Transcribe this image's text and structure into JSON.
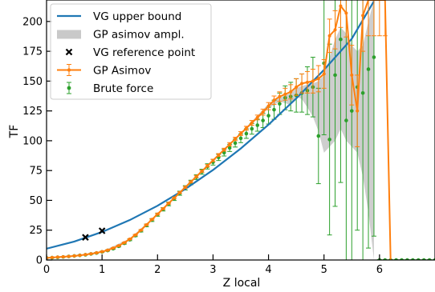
{
  "chart_data": {
    "type": "line",
    "xlabel": "Z local",
    "ylabel": "TF",
    "xlim": [
      0,
      7
    ],
    "ylim": [
      0,
      218
    ],
    "x_ticks": [
      0,
      1,
      2,
      3,
      4,
      5,
      6
    ],
    "y_ticks": [
      0,
      25,
      50,
      75,
      100,
      125,
      150,
      175,
      200
    ],
    "grid": false,
    "legend_position": "top-left",
    "colors": {
      "vg": "#1f77b4",
      "gp": "#ff7f0e",
      "bf": "#2ca02c",
      "band": "#c9c9c9",
      "ref": "#000000"
    },
    "legend": [
      {
        "key": "vg",
        "label": "VG upper bound"
      },
      {
        "key": "band",
        "label": "GP asimov ampl."
      },
      {
        "key": "ref",
        "label": "VG reference point"
      },
      {
        "key": "gp",
        "label": "GP Asimov"
      },
      {
        "key": "bf",
        "label": "Brute force"
      }
    ],
    "series": [
      {
        "name": "VG upper bound",
        "key": "vg",
        "style": "line",
        "x": [
          0,
          0.5,
          1,
          1.5,
          2,
          2.5,
          3,
          3.5,
          4,
          4.5,
          5,
          5.5,
          5.9
        ],
        "y": [
          9.5,
          15.5,
          23.5,
          33.5,
          45.5,
          59.5,
          75.5,
          93.5,
          113.5,
          135.5,
          159.5,
          185.5,
          217
        ]
      },
      {
        "name": "VG reference point",
        "key": "ref",
        "style": "marker-x",
        "x": [
          0.7,
          1.0
        ],
        "y": [
          19,
          24.5
        ]
      },
      {
        "name": "GP Asimov",
        "key": "gp",
        "style": "line-errorbar",
        "x": [
          0,
          0.1,
          0.2,
          0.3,
          0.4,
          0.5,
          0.6,
          0.7,
          0.8,
          0.9,
          1.0,
          1.1,
          1.2,
          1.3,
          1.4,
          1.5,
          1.6,
          1.7,
          1.8,
          1.9,
          2.0,
          2.1,
          2.2,
          2.3,
          2.4,
          2.5,
          2.6,
          2.7,
          2.8,
          2.9,
          3.0,
          3.1,
          3.2,
          3.3,
          3.4,
          3.5,
          3.6,
          3.7,
          3.8,
          3.9,
          4.0,
          4.1,
          4.2,
          4.3,
          4.4,
          4.5,
          4.6,
          4.7,
          4.8,
          4.9,
          5.0,
          5.1,
          5.2,
          5.3,
          5.4,
          5.5,
          5.6,
          5.7,
          5.8,
          5.9,
          6.0,
          6.1,
          6.2
        ],
        "y": [
          1.8,
          2.1,
          2.4,
          2.7,
          3.0,
          3.4,
          3.9,
          4.5,
          5.2,
          6.0,
          7.0,
          8.2,
          10,
          12,
          14.5,
          17.5,
          21,
          25,
          29.5,
          34,
          38.5,
          43,
          47.5,
          52,
          56.5,
          61,
          65.5,
          70,
          74.5,
          79,
          83.5,
          88,
          92.5,
          97,
          101.5,
          106,
          110.5,
          115,
          119.5,
          124,
          129,
          134,
          137,
          139,
          141,
          145,
          148,
          149,
          150,
          152,
          156,
          188,
          193,
          213,
          207,
          155,
          125,
          205,
          218,
          218,
          218,
          218,
          0
        ],
        "err": [
          0.2,
          0.2,
          0.2,
          0.2,
          0.2,
          0.2,
          0.2,
          0.2,
          0.2,
          0.2,
          0.3,
          0.3,
          0.3,
          0.3,
          0.4,
          0.4,
          0.4,
          0.5,
          0.5,
          0.5,
          0.6,
          0.6,
          0.6,
          0.7,
          0.7,
          0.8,
          0.8,
          0.9,
          0.9,
          1.0,
          1.0,
          1.2,
          1.2,
          1.4,
          1.4,
          1.6,
          1.6,
          2.0,
          2.0,
          2.5,
          3.0,
          3.5,
          4.0,
          5,
          6,
          7,
          8,
          9,
          10,
          11,
          12,
          14,
          16,
          18,
          20,
          25,
          30,
          30,
          30,
          30,
          30,
          30,
          0
        ]
      },
      {
        "name": "Brute force",
        "key": "bf",
        "style": "points-errorbar",
        "x": [
          0,
          0.1,
          0.2,
          0.3,
          0.4,
          0.5,
          0.6,
          0.7,
          0.8,
          0.9,
          1.0,
          1.1,
          1.2,
          1.3,
          1.4,
          1.5,
          1.6,
          1.7,
          1.8,
          1.9,
          2.0,
          2.1,
          2.2,
          2.3,
          2.4,
          2.5,
          2.6,
          2.7,
          2.8,
          2.9,
          3.0,
          3.1,
          3.2,
          3.3,
          3.4,
          3.5,
          3.6,
          3.7,
          3.8,
          3.9,
          4.0,
          4.1,
          4.2,
          4.3,
          4.4,
          4.5,
          4.6,
          4.7,
          4.8,
          4.9,
          5.0,
          5.1,
          5.2,
          5.3,
          5.4,
          5.5,
          5.6,
          5.7,
          5.8,
          5.9,
          6.0,
          6.1,
          6.2,
          6.3,
          6.4,
          6.5,
          6.6,
          6.7,
          6.8,
          6.9,
          7.0
        ],
        "y": [
          1.8,
          2.0,
          2.3,
          2.6,
          3.0,
          3.4,
          3.9,
          4.4,
          5.1,
          5.9,
          6.8,
          8,
          9.5,
          11.5,
          14,
          17,
          20.5,
          24.5,
          29,
          33.5,
          38,
          42.5,
          47,
          51.5,
          56,
          60.5,
          65,
          69.5,
          74,
          78.5,
          82,
          86,
          90,
          94,
          98,
          102,
          106,
          110,
          113,
          117,
          121,
          126,
          131,
          136,
          137,
          138,
          140,
          142,
          145,
          104,
          165,
          101,
          155,
          185,
          117,
          125,
          145,
          140,
          160,
          170,
          0,
          0,
          0,
          0,
          0,
          0,
          0,
          0,
          0,
          0,
          0
        ],
        "err": [
          0.3,
          0.3,
          0.3,
          0.3,
          0.3,
          0.3,
          0.3,
          0.3,
          0.4,
          0.4,
          0.4,
          0.5,
          0.5,
          0.6,
          0.7,
          0.8,
          0.9,
          1.0,
          1.1,
          1.2,
          1.3,
          1.4,
          1.5,
          1.6,
          1.7,
          1.8,
          1.9,
          2.0,
          2.1,
          2.2,
          2.4,
          2.6,
          2.8,
          3.0,
          3.3,
          3.6,
          4.0,
          4.5,
          5,
          6,
          7,
          8,
          9,
          10,
          12,
          14,
          16,
          20,
          25,
          40,
          60,
          80,
          110,
          120,
          130,
          135,
          120,
          140,
          150,
          150,
          0.3,
          0.3,
          0.3,
          0.3,
          0.3,
          0.3,
          0.3,
          0.3,
          0.3,
          0.3,
          0.3
        ]
      }
    ],
    "band": {
      "name": "GP asimov ampl.",
      "key": "band",
      "x": [
        0,
        0.5,
        1.0,
        1.5,
        2.0,
        2.5,
        3.0,
        3.5,
        4.0,
        4.2,
        4.4,
        4.5,
        4.6,
        4.7,
        4.8,
        4.9,
        5.0,
        5.1,
        5.2,
        5.3,
        5.4,
        5.5,
        5.6,
        5.7,
        5.8,
        5.9
      ],
      "lower": [
        1.6,
        3.2,
        6.7,
        17,
        38,
        60.5,
        83,
        105.5,
        127,
        133,
        130,
        137,
        135,
        128,
        120,
        108,
        90,
        95,
        100,
        110,
        100,
        95,
        90,
        70,
        40,
        0
      ],
      "upper": [
        2.0,
        3.6,
        7.3,
        18,
        39,
        61.5,
        84,
        106.5,
        131,
        136,
        140,
        144,
        146,
        147,
        148,
        150,
        155,
        170,
        185,
        195,
        190,
        180,
        175,
        180,
        200,
        218
      ]
    }
  }
}
